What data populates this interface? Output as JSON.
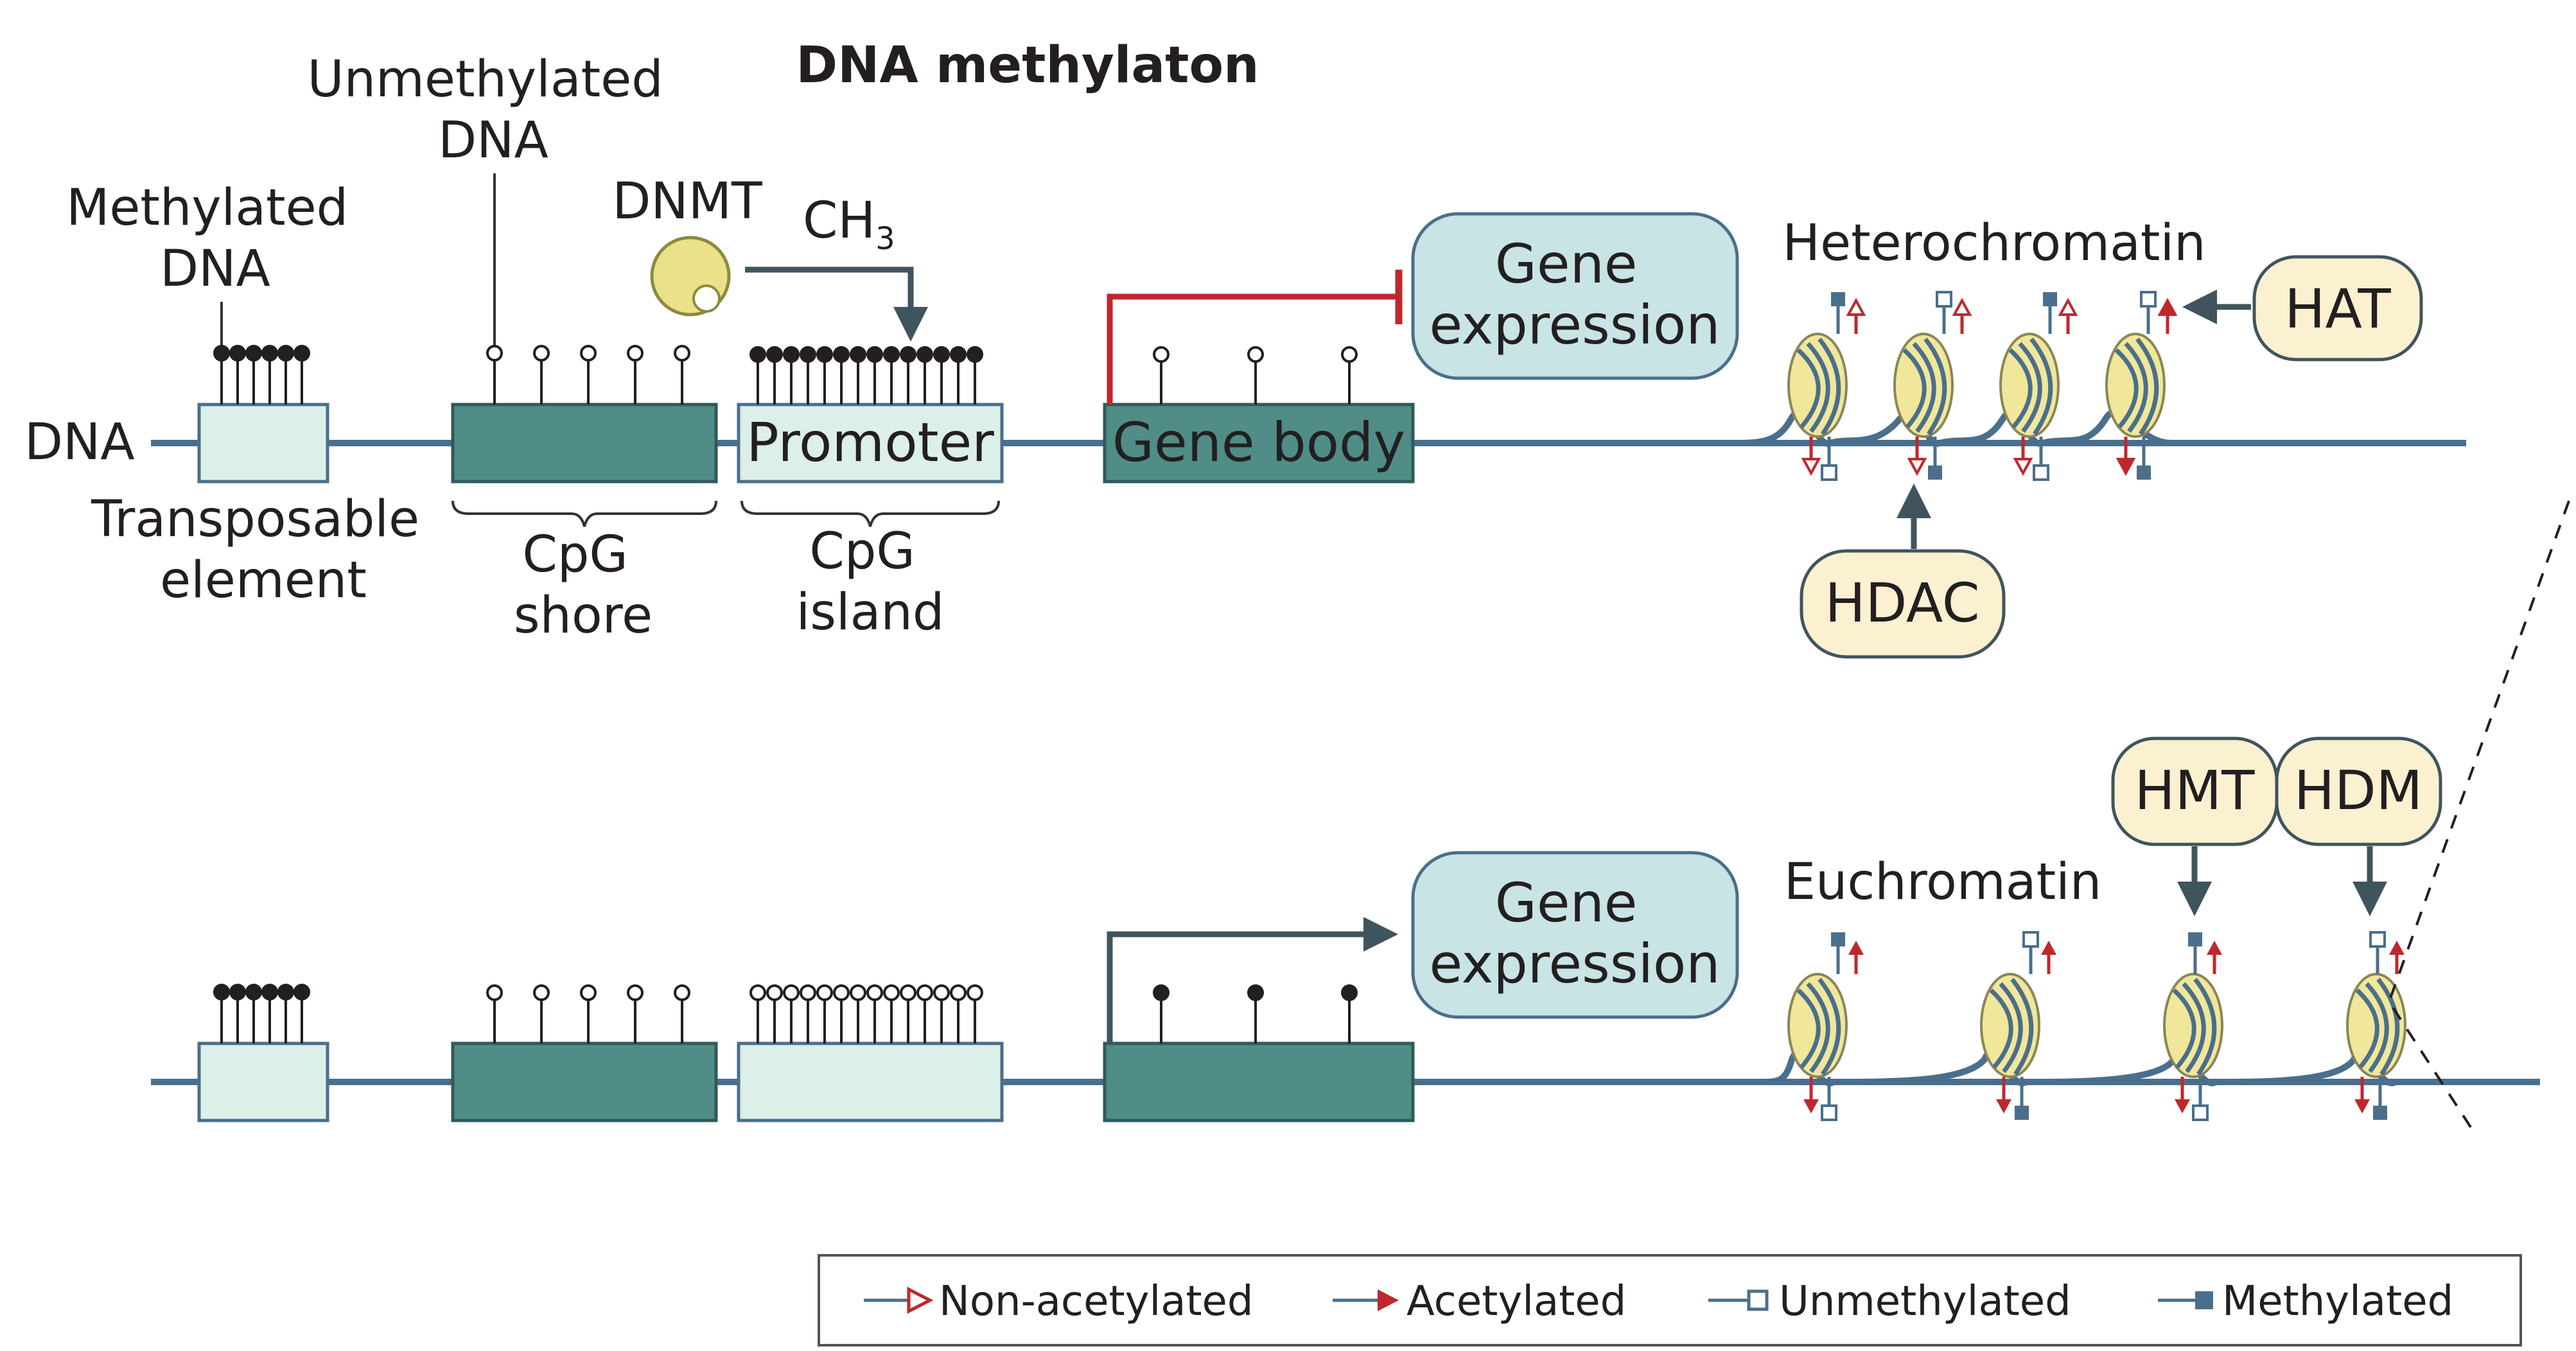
{
  "title": "DNA methylaton",
  "colors": {
    "dna_line": "#4a6f8c",
    "box_light": "#dcefe9",
    "box_dark": "#4f8d86",
    "enzyme_fill": "#fbf1d0",
    "expression_fill": "#c8e4e4",
    "repress": "#c0272d",
    "arrow": "#40545d",
    "dnmt": "#e9e28a"
  },
  "labels": {
    "methylated_dna": [
      "Methylated",
      "DNA"
    ],
    "unmethylated_dna": [
      "Unmethylated",
      "DNA"
    ],
    "dnmt": "DNMT",
    "ch3": "CH",
    "ch3_sub": "3",
    "dna": "DNA",
    "promoter": "Promoter",
    "gene_body": "Gene body",
    "transposable_element": [
      "Transposable",
      "element"
    ],
    "cpg_shore": [
      "CpG",
      "shore"
    ],
    "cpg_island": [
      "CpG",
      "island"
    ],
    "gene_expression": [
      "Gene",
      "expression"
    ],
    "heterochromatin": "Heterochromatin",
    "euchromatin": "Euchromatin"
  },
  "enzymes": {
    "hat": "HAT",
    "hdac": "HDAC",
    "hmt": "HMT",
    "hdm": "HDM"
  },
  "legend": [
    {
      "label": "Non-acetylated",
      "icon": "open-triangle-icon"
    },
    {
      "label": "Acetylated",
      "icon": "filled-triangle-icon"
    },
    {
      "label": "Unmethylated",
      "icon": "open-square-icon"
    },
    {
      "label": "Methylated",
      "icon": "filled-square-icon"
    }
  ]
}
